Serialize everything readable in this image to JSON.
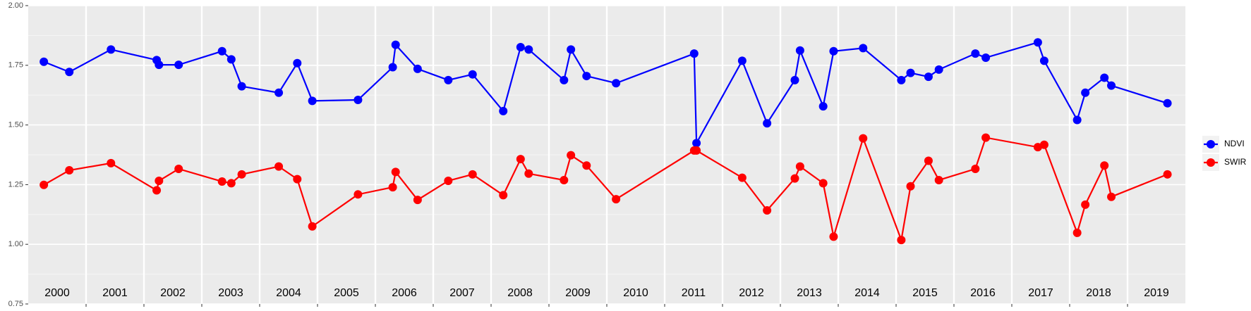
{
  "chart_data": {
    "type": "line",
    "xlim": [
      2000,
      2020
    ],
    "xticks": [
      {
        "value": 2000.5,
        "label": "2000"
      },
      {
        "value": 2001.5,
        "label": "2001"
      },
      {
        "value": 2002.5,
        "label": "2002"
      },
      {
        "value": 2003.5,
        "label": "2003"
      },
      {
        "value": 2004.5,
        "label": "2004"
      },
      {
        "value": 2005.5,
        "label": "2005"
      },
      {
        "value": 2006.5,
        "label": "2006"
      },
      {
        "value": 2007.5,
        "label": "2007"
      },
      {
        "value": 2008.5,
        "label": "2008"
      },
      {
        "value": 2009.5,
        "label": "2009"
      },
      {
        "value": 2010.5,
        "label": "2010"
      },
      {
        "value": 2011.5,
        "label": "2011"
      },
      {
        "value": 2012.5,
        "label": "2012"
      },
      {
        "value": 2013.5,
        "label": "2013"
      },
      {
        "value": 2014.5,
        "label": "2014"
      },
      {
        "value": 2015.5,
        "label": "2015"
      },
      {
        "value": 2016.5,
        "label": "2016"
      },
      {
        "value": 2017.5,
        "label": "2017"
      },
      {
        "value": 2018.5,
        "label": "2018"
      },
      {
        "value": 2019.5,
        "label": "2019"
      }
    ],
    "xgrid": [
      2001,
      2002,
      2003,
      2004,
      2005,
      2006,
      2007,
      2008,
      2009,
      2010,
      2011,
      2012,
      2013,
      2014,
      2015,
      2016,
      2017,
      2018,
      2019
    ],
    "ylim": [
      0.75,
      2.0
    ],
    "yticks": [
      {
        "value": 0.75,
        "label": "0.75"
      },
      {
        "value": 1.0,
        "label": "1.00"
      },
      {
        "value": 1.25,
        "label": "1.25"
      },
      {
        "value": 1.5,
        "label": "1.50"
      },
      {
        "value": 1.75,
        "label": "1.75"
      },
      {
        "value": 2.0,
        "label": "2.00"
      }
    ],
    "yminor": [
      0.875,
      1.125,
      1.375,
      1.625,
      1.875
    ],
    "grid": true,
    "legend": "right",
    "x": [
      2000.27,
      2000.71,
      2001.43,
      2002.22,
      2002.26,
      2002.6,
      2003.35,
      2003.51,
      2003.69,
      2004.33,
      2004.65,
      2004.91,
      2005.7,
      2006.3,
      2006.35,
      2006.73,
      2007.26,
      2007.68,
      2008.21,
      2008.51,
      2008.65,
      2009.26,
      2009.38,
      2009.65,
      2010.16,
      2011.51,
      2011.55,
      2012.34,
      2012.77,
      2013.25,
      2013.34,
      2013.74,
      2013.92,
      2014.43,
      2015.09,
      2015.25,
      2015.56,
      2015.74,
      2016.37,
      2016.55,
      2017.45,
      2017.56,
      2018.13,
      2018.27,
      2018.6,
      2018.72,
      2019.69
    ],
    "series": [
      {
        "name": "NDVI",
        "color": "#0000ff",
        "values": [
          1.765,
          1.722,
          1.816,
          1.772,
          1.752,
          1.752,
          1.809,
          1.775,
          1.662,
          1.635,
          1.759,
          1.601,
          1.605,
          1.742,
          1.836,
          1.735,
          1.688,
          1.712,
          1.558,
          1.826,
          1.816,
          1.688,
          1.816,
          1.705,
          1.675,
          1.799,
          1.424,
          1.769,
          1.507,
          1.688,
          1.812,
          1.578,
          1.809,
          1.822,
          1.688,
          1.718,
          1.702,
          1.732,
          1.799,
          1.782,
          1.846,
          1.769,
          1.521,
          1.635,
          1.698,
          1.665,
          1.591
        ]
      },
      {
        "name": "SWIR",
        "color": "#ff0000",
        "values": [
          1.249,
          1.31,
          1.34,
          1.226,
          1.266,
          1.316,
          1.263,
          1.256,
          1.293,
          1.326,
          1.273,
          1.075,
          1.209,
          1.239,
          1.303,
          1.186,
          1.266,
          1.293,
          1.206,
          1.357,
          1.296,
          1.269,
          1.373,
          1.33,
          1.189,
          1.393,
          1.393,
          1.279,
          1.142,
          1.276,
          1.326,
          1.256,
          1.032,
          1.444,
          1.018,
          1.243,
          1.35,
          1.269,
          1.316,
          1.447,
          1.407,
          1.417,
          1.048,
          1.166,
          1.33,
          1.199,
          1.293
        ]
      }
    ]
  }
}
